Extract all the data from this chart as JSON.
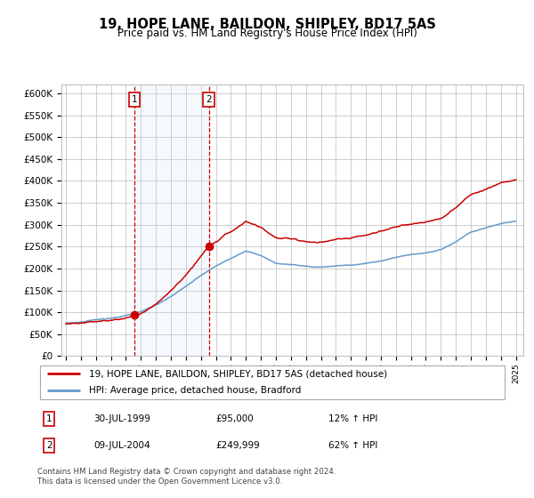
{
  "title": "19, HOPE LANE, BAILDON, SHIPLEY, BD17 5AS",
  "subtitle": "Price paid vs. HM Land Registry's House Price Index (HPI)",
  "ylim": [
    0,
    620000
  ],
  "yticks": [
    0,
    50000,
    100000,
    150000,
    200000,
    250000,
    300000,
    350000,
    400000,
    450000,
    500000,
    550000,
    600000
  ],
  "ytick_labels": [
    "£0",
    "£50K",
    "£100K",
    "£150K",
    "£200K",
    "£250K",
    "£300K",
    "£350K",
    "£400K",
    "£450K",
    "£500K",
    "£550K",
    "£600K"
  ],
  "sale1_date": 1999.58,
  "sale1_price": 95000,
  "sale2_date": 2004.53,
  "sale2_price": 249999,
  "legend_line1": "19, HOPE LANE, BAILDON, SHIPLEY, BD17 5AS (detached house)",
  "legend_line2": "HPI: Average price, detached house, Bradford",
  "table_row1": [
    "1",
    "30-JUL-1999",
    "£95,000",
    "12% ↑ HPI"
  ],
  "table_row2": [
    "2",
    "09-JUL-2004",
    "£249,999",
    "62% ↑ HPI"
  ],
  "footer": "Contains HM Land Registry data © Crown copyright and database right 2024.\nThis data is licensed under the Open Government Licence v3.0.",
  "red_color": "#cc0000",
  "blue_color": "#6699cc",
  "shade_color": "#ddeeff",
  "grid_color": "#bbbbbb"
}
